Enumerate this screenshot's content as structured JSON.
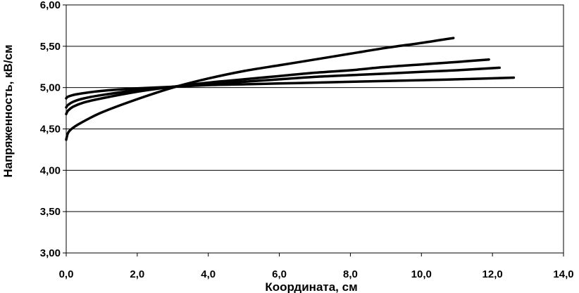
{
  "chart_data": {
    "type": "line",
    "xlabel": "Координата, см",
    "ylabel": "Напряженность, кВ/см",
    "xlim": [
      0,
      14
    ],
    "ylim": [
      3,
      6
    ],
    "x_ticks": [
      "0,0",
      "2,0",
      "4,0",
      "6,0",
      "8,0",
      "10,0",
      "12,0",
      "14,0"
    ],
    "y_ticks": [
      "3,00",
      "3,50",
      "4,00",
      "4,50",
      "5,00",
      "5,50",
      "6,00"
    ],
    "grid": "horizontal",
    "legend": "none",
    "series": [
      {
        "color": "#000000",
        "points": [
          [
            0.0,
            4.37
          ],
          [
            0.05,
            4.45
          ],
          [
            0.15,
            4.5
          ],
          [
            0.4,
            4.57
          ],
          [
            1.0,
            4.7
          ],
          [
            2.0,
            4.86
          ],
          [
            3.0,
            5.0
          ],
          [
            4.0,
            5.11
          ],
          [
            5.0,
            5.2
          ],
          [
            6.0,
            5.27
          ],
          [
            7.0,
            5.34
          ],
          [
            8.0,
            5.41
          ],
          [
            9.0,
            5.48
          ],
          [
            10.0,
            5.54
          ],
          [
            10.9,
            5.6
          ]
        ]
      },
      {
        "color": "#000000",
        "points": [
          [
            0.0,
            4.68
          ],
          [
            0.05,
            4.72
          ],
          [
            0.2,
            4.77
          ],
          [
            0.5,
            4.82
          ],
          [
            1.0,
            4.87
          ],
          [
            2.0,
            4.95
          ],
          [
            3.0,
            5.01
          ],
          [
            4.0,
            5.06
          ],
          [
            5.0,
            5.1
          ],
          [
            6.0,
            5.14
          ],
          [
            7.0,
            5.18
          ],
          [
            8.0,
            5.21
          ],
          [
            9.0,
            5.25
          ],
          [
            10.0,
            5.28
          ],
          [
            11.0,
            5.31
          ],
          [
            11.9,
            5.34
          ]
        ]
      },
      {
        "color": "#000000",
        "points": [
          [
            0.0,
            4.76
          ],
          [
            0.05,
            4.79
          ],
          [
            0.2,
            4.83
          ],
          [
            0.5,
            4.87
          ],
          [
            1.0,
            4.91
          ],
          [
            2.0,
            4.97
          ],
          [
            3.0,
            5.01
          ],
          [
            4.0,
            5.04
          ],
          [
            5.0,
            5.07
          ],
          [
            6.0,
            5.1
          ],
          [
            7.0,
            5.13
          ],
          [
            8.0,
            5.15
          ],
          [
            9.0,
            5.17
          ],
          [
            10.0,
            5.19
          ],
          [
            11.0,
            5.21
          ],
          [
            12.2,
            5.24
          ]
        ]
      },
      {
        "color": "#000000",
        "points": [
          [
            0.0,
            4.87
          ],
          [
            0.05,
            4.89
          ],
          [
            0.3,
            4.92
          ],
          [
            1.0,
            4.96
          ],
          [
            2.0,
            4.99
          ],
          [
            3.0,
            5.01
          ],
          [
            4.0,
            5.03
          ],
          [
            5.0,
            5.04
          ],
          [
            6.0,
            5.05
          ],
          [
            7.0,
            5.06
          ],
          [
            8.0,
            5.07
          ],
          [
            9.0,
            5.08
          ],
          [
            10.0,
            5.09
          ],
          [
            11.0,
            5.1
          ],
          [
            12.6,
            5.12
          ]
        ]
      }
    ]
  }
}
